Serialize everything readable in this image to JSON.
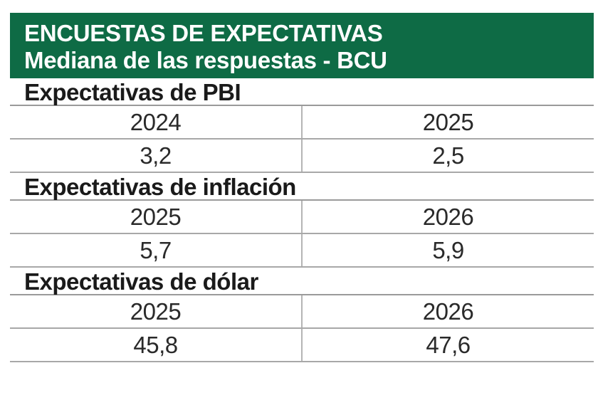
{
  "header": {
    "line1": "ENCUESTAS DE EXPECTATIVAS",
    "line2": "Mediana de las respuestas - BCU"
  },
  "sections": [
    {
      "title": "Expectativas de PBI",
      "years": [
        "2024",
        "2025"
      ],
      "values": [
        "3,2",
        "2,5"
      ]
    },
    {
      "title": "Expectativas de inflación",
      "years": [
        "2025",
        "2026"
      ],
      "values": [
        "5,7",
        "5,9"
      ]
    },
    {
      "title": "Expectativas de dólar",
      "years": [
        "2025",
        "2026"
      ],
      "values": [
        "45,8",
        "47,6"
      ]
    }
  ],
  "colors": {
    "header_bg": "#0e6b45",
    "header_text": "#ffffff",
    "rule": "#a8a8a8"
  },
  "chart_data": {
    "type": "table",
    "title": "ENCUESTAS DE EXPECTATIVAS",
    "subtitle": "Mediana de las respuestas - BCU",
    "tables": [
      {
        "name": "Expectativas de PBI",
        "columns": [
          "2024",
          "2025"
        ],
        "values": [
          3.2,
          2.5
        ]
      },
      {
        "name": "Expectativas de inflación",
        "columns": [
          "2025",
          "2026"
        ],
        "values": [
          5.7,
          5.9
        ]
      },
      {
        "name": "Expectativas de dólar",
        "columns": [
          "2025",
          "2026"
        ],
        "values": [
          45.8,
          47.6
        ]
      }
    ]
  }
}
